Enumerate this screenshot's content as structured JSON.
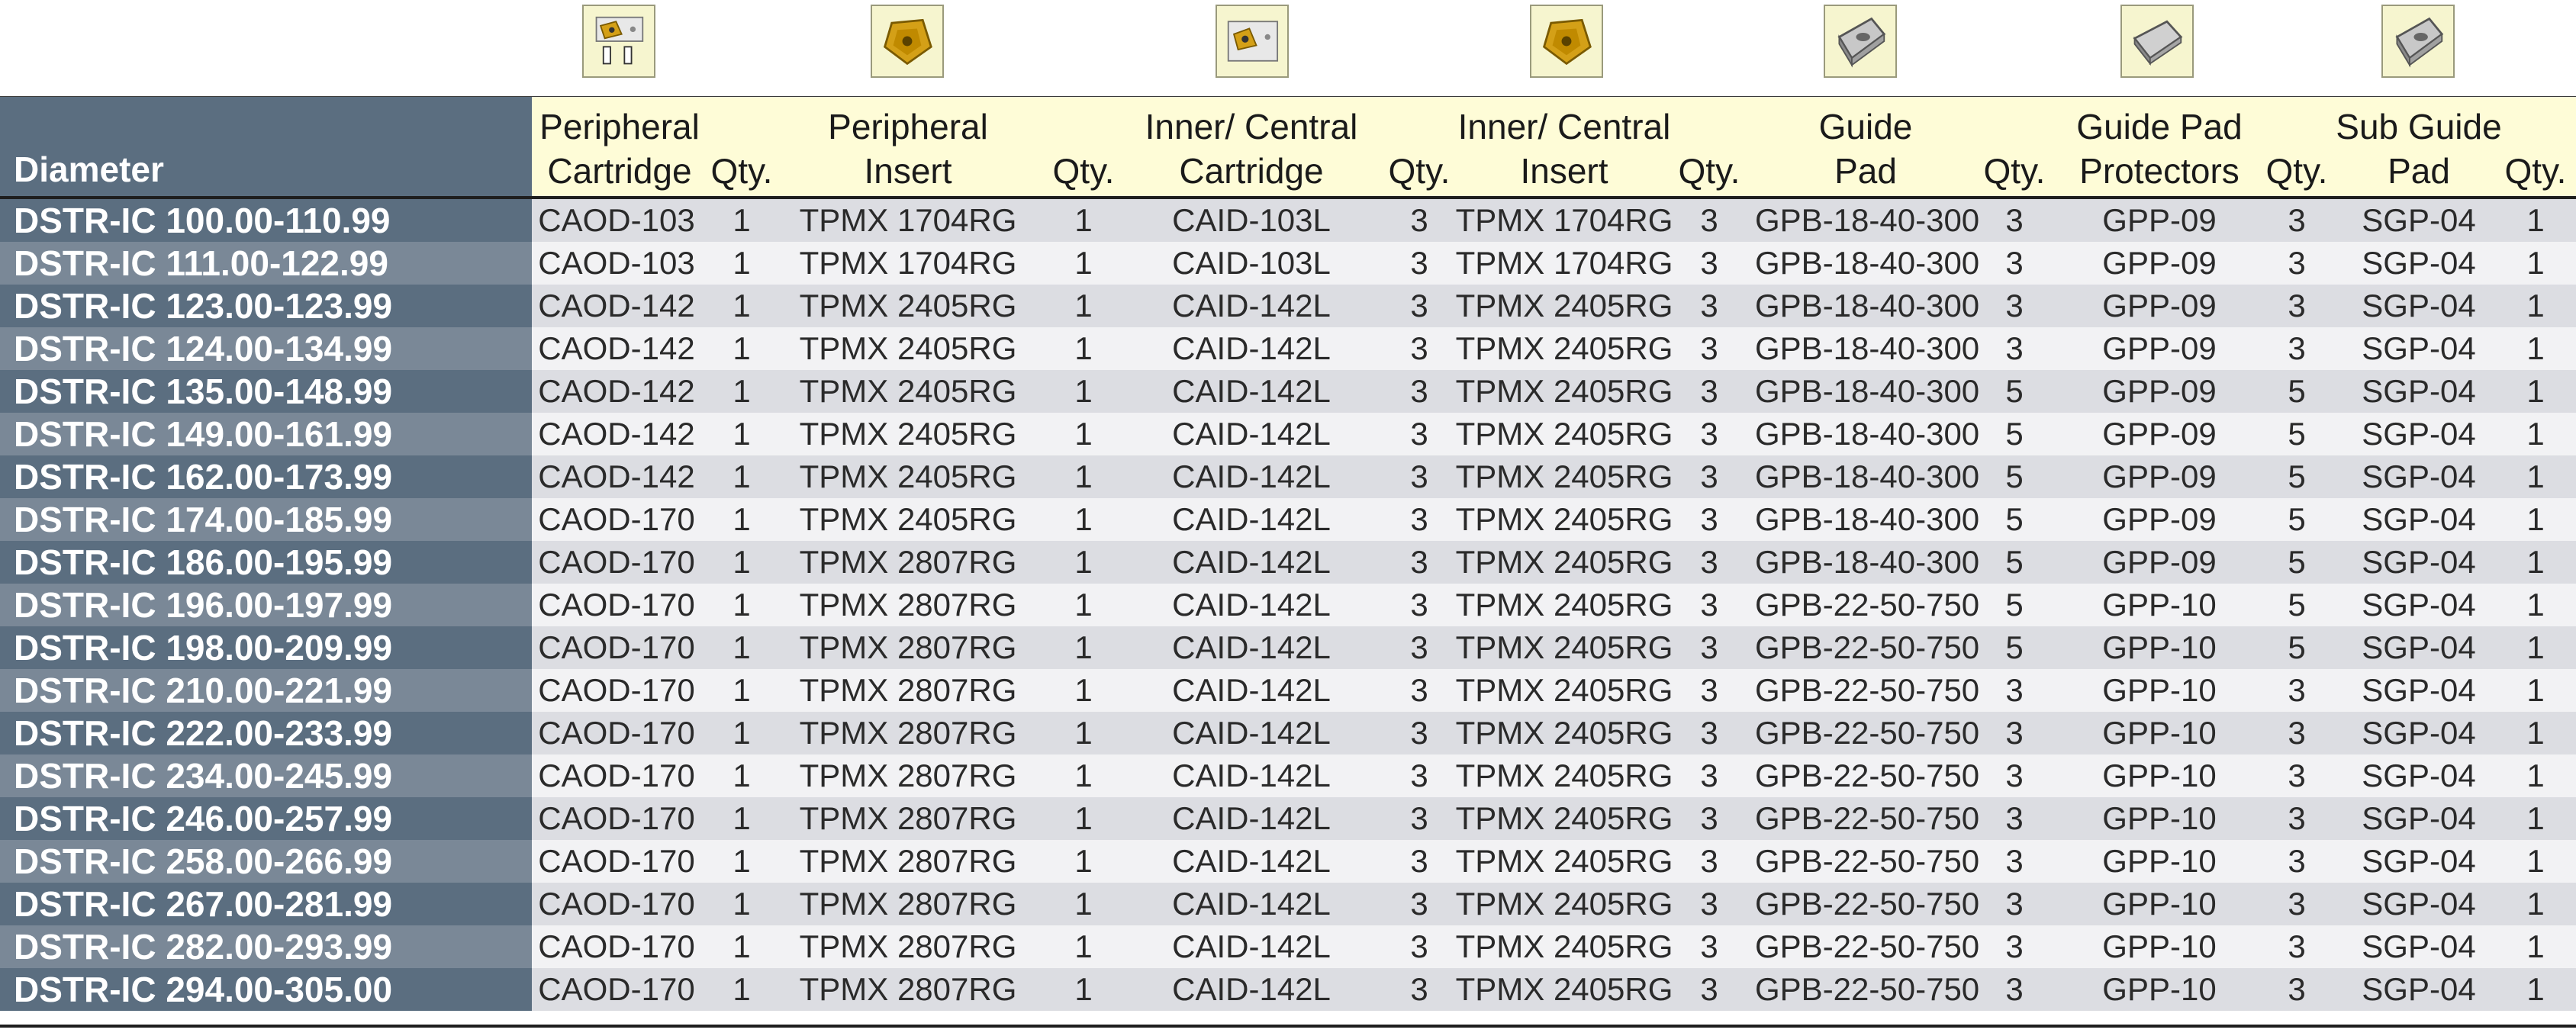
{
  "icons": [
    {
      "name": "peripheral-cartridge-icon",
      "color": "#d4a017"
    },
    {
      "name": "peripheral-insert-icon",
      "color": "#d4a017"
    },
    {
      "name": "inner-central-cartridge-icon",
      "color": "#d4a017"
    },
    {
      "name": "inner-central-insert-icon",
      "color": "#d4a017"
    },
    {
      "name": "guide-pad-icon",
      "color": "#9a9a9a"
    },
    {
      "name": "guide-pad-protector-icon",
      "color": "#9a9a9a"
    },
    {
      "name": "sub-guide-pad-icon",
      "color": "#9a9a9a"
    }
  ],
  "header": {
    "diameter": "Diameter",
    "cols": [
      {
        "l1": "Peripheral",
        "l2": "Cartridge"
      },
      {
        "l1": "",
        "l2": "Qty."
      },
      {
        "l1": "Peripheral",
        "l2": "Insert"
      },
      {
        "l1": "",
        "l2": "Qty."
      },
      {
        "l1": "Inner/ Central",
        "l2": "Cartridge"
      },
      {
        "l1": "",
        "l2": "Qty."
      },
      {
        "l1": "Inner/ Central",
        "l2": "Insert"
      },
      {
        "l1": "",
        "l2": "Qty."
      },
      {
        "l1": "Guide",
        "l2": "Pad"
      },
      {
        "l1": "",
        "l2": "Qty."
      },
      {
        "l1": "Guide Pad",
        "l2": "Protectors"
      },
      {
        "l1": "",
        "l2": "Qty."
      },
      {
        "l1": "Sub Guide",
        "l2": "Pad"
      },
      {
        "l1": "",
        "l2": "Qty."
      }
    ]
  },
  "rows": [
    [
      "DSTR-IC 100.00-110.99",
      "CAOD-103",
      "1",
      "TPMX 1704RG",
      "1",
      "CAID-103L",
      "3",
      "TPMX 1704RG",
      "3",
      "GPB-18-40-300",
      "3",
      "GPP-09",
      "3",
      "SGP-04",
      "1"
    ],
    [
      "DSTR-IC 111.00-122.99",
      "CAOD-103",
      "1",
      "TPMX 1704RG",
      "1",
      "CAID-103L",
      "3",
      "TPMX 1704RG",
      "3",
      "GPB-18-40-300",
      "3",
      "GPP-09",
      "3",
      "SGP-04",
      "1"
    ],
    [
      "DSTR-IC 123.00-123.99",
      "CAOD-142",
      "1",
      "TPMX 2405RG",
      "1",
      "CAID-142L",
      "3",
      "TPMX 2405RG",
      "3",
      "GPB-18-40-300",
      "3",
      "GPP-09",
      "3",
      "SGP-04",
      "1"
    ],
    [
      "DSTR-IC 124.00-134.99",
      "CAOD-142",
      "1",
      "TPMX 2405RG",
      "1",
      "CAID-142L",
      "3",
      "TPMX 2405RG",
      "3",
      "GPB-18-40-300",
      "3",
      "GPP-09",
      "3",
      "SGP-04",
      "1"
    ],
    [
      "DSTR-IC 135.00-148.99",
      "CAOD-142",
      "1",
      "TPMX 2405RG",
      "1",
      "CAID-142L",
      "3",
      "TPMX 2405RG",
      "3",
      "GPB-18-40-300",
      "5",
      "GPP-09",
      "5",
      "SGP-04",
      "1"
    ],
    [
      "DSTR-IC 149.00-161.99",
      "CAOD-142",
      "1",
      "TPMX 2405RG",
      "1",
      "CAID-142L",
      "3",
      "TPMX 2405RG",
      "3",
      "GPB-18-40-300",
      "5",
      "GPP-09",
      "5",
      "SGP-04",
      "1"
    ],
    [
      "DSTR-IC 162.00-173.99",
      "CAOD-142",
      "1",
      "TPMX 2405RG",
      "1",
      "CAID-142L",
      "3",
      "TPMX 2405RG",
      "3",
      "GPB-18-40-300",
      "5",
      "GPP-09",
      "5",
      "SGP-04",
      "1"
    ],
    [
      "DSTR-IC 174.00-185.99",
      "CAOD-170",
      "1",
      "TPMX 2405RG",
      "1",
      "CAID-142L",
      "3",
      "TPMX 2405RG",
      "3",
      "GPB-18-40-300",
      "5",
      "GPP-09",
      "5",
      "SGP-04",
      "1"
    ],
    [
      "DSTR-IC 186.00-195.99",
      "CAOD-170",
      "1",
      "TPMX 2807RG",
      "1",
      "CAID-142L",
      "3",
      "TPMX 2405RG",
      "3",
      "GPB-18-40-300",
      "5",
      "GPP-09",
      "5",
      "SGP-04",
      "1"
    ],
    [
      "DSTR-IC 196.00-197.99",
      "CAOD-170",
      "1",
      "TPMX 2807RG",
      "1",
      "CAID-142L",
      "3",
      "TPMX 2405RG",
      "3",
      "GPB-22-50-750",
      "5",
      "GPP-10",
      "5",
      "SGP-04",
      "1"
    ],
    [
      "DSTR-IC 198.00-209.99",
      "CAOD-170",
      "1",
      "TPMX 2807RG",
      "1",
      "CAID-142L",
      "3",
      "TPMX 2405RG",
      "3",
      "GPB-22-50-750",
      "5",
      "GPP-10",
      "5",
      "SGP-04",
      "1"
    ],
    [
      "DSTR-IC 210.00-221.99",
      "CAOD-170",
      "1",
      "TPMX 2807RG",
      "1",
      "CAID-142L",
      "3",
      "TPMX 2405RG",
      "3",
      "GPB-22-50-750",
      "3",
      "GPP-10",
      "3",
      "SGP-04",
      "1"
    ],
    [
      "DSTR-IC 222.00-233.99",
      "CAOD-170",
      "1",
      "TPMX 2807RG",
      "1",
      "CAID-142L",
      "3",
      "TPMX 2405RG",
      "3",
      "GPB-22-50-750",
      "3",
      "GPP-10",
      "3",
      "SGP-04",
      "1"
    ],
    [
      "DSTR-IC 234.00-245.99",
      "CAOD-170",
      "1",
      "TPMX 2807RG",
      "1",
      "CAID-142L",
      "3",
      "TPMX 2405RG",
      "3",
      "GPB-22-50-750",
      "3",
      "GPP-10",
      "3",
      "SGP-04",
      "1"
    ],
    [
      "DSTR-IC 246.00-257.99",
      "CAOD-170",
      "1",
      "TPMX 2807RG",
      "1",
      "CAID-142L",
      "3",
      "TPMX 2405RG",
      "3",
      "GPB-22-50-750",
      "3",
      "GPP-10",
      "3",
      "SGP-04",
      "1"
    ],
    [
      "DSTR-IC 258.00-266.99",
      "CAOD-170",
      "1",
      "TPMX 2807RG",
      "1",
      "CAID-142L",
      "3",
      "TPMX 2405RG",
      "3",
      "GPB-22-50-750",
      "3",
      "GPP-10",
      "3",
      "SGP-04",
      "1"
    ],
    [
      "DSTR-IC 267.00-281.99",
      "CAOD-170",
      "1",
      "TPMX 2807RG",
      "1",
      "CAID-142L",
      "3",
      "TPMX 2405RG",
      "3",
      "GPB-22-50-750",
      "3",
      "GPP-10",
      "3",
      "SGP-04",
      "1"
    ],
    [
      "DSTR-IC 282.00-293.99",
      "CAOD-170",
      "1",
      "TPMX 2807RG",
      "1",
      "CAID-142L",
      "3",
      "TPMX 2405RG",
      "3",
      "GPB-22-50-750",
      "3",
      "GPP-10",
      "3",
      "SGP-04",
      "1"
    ],
    [
      "DSTR-IC 294.00-305.00",
      "CAOD-170",
      "1",
      "TPMX 2807RG",
      "1",
      "CAID-142L",
      "3",
      "TPMX 2405RG",
      "3",
      "GPB-22-50-750",
      "3",
      "GPP-10",
      "3",
      "SGP-04",
      "1"
    ]
  ]
}
